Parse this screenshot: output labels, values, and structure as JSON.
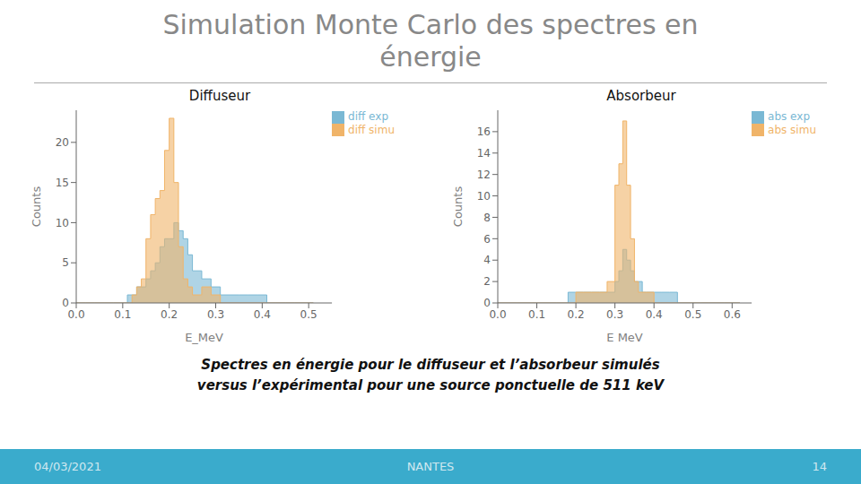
{
  "title": "Simulation Monte Carlo des spectres en\nénergie",
  "annotations": [
    "Spectres en énergie pour le diffuseur et l’absorbeur simulés",
    "versus l’expérimental pour une source ponctuelle de 511 keV",
    "04/03/2021",
    "NANTES",
    "14"
  ],
  "chart_data": [
    {
      "type": "histogram",
      "title": "Diffuseur",
      "xlabel": "E_MeV",
      "ylabel": "Counts",
      "xlim": [
        0.0,
        0.55
      ],
      "ylim": [
        0,
        24
      ],
      "xticks": [
        {
          "value": 0.0,
          "label": "0.0"
        },
        0.1,
        0.2,
        0.3,
        0.4,
        0.5
      ],
      "yticks": [
        0,
        5,
        10,
        15,
        20
      ],
      "grid": false,
      "legend": "upper right",
      "series": [
        {
          "name": "diff exp",
          "color": "#7ab8d4",
          "bins": [
            0.0,
            0.02,
            0.04,
            0.06,
            0.08,
            0.1,
            0.11,
            0.12,
            0.13,
            0.14,
            0.15,
            0.16,
            0.17,
            0.18,
            0.19,
            0.2,
            0.21,
            0.22,
            0.23,
            0.24,
            0.25,
            0.27,
            0.29,
            0.31,
            0.33,
            0.35,
            0.37,
            0.39,
            0.41,
            0.43,
            0.45,
            0.47,
            0.49,
            0.51
          ],
          "values": [
            0,
            0,
            0,
            0,
            0,
            0,
            1,
            1,
            2,
            2,
            3,
            4,
            5,
            7,
            8,
            8,
            10,
            9,
            8,
            6,
            4,
            3,
            2,
            1,
            1,
            1,
            1,
            1,
            0,
            0,
            0,
            0,
            0
          ]
        },
        {
          "name": "diff simu",
          "color": "#f0b469",
          "bins": [
            0.0,
            0.02,
            0.04,
            0.06,
            0.08,
            0.1,
            0.11,
            0.12,
            0.13,
            0.14,
            0.15,
            0.16,
            0.17,
            0.18,
            0.19,
            0.2,
            0.21,
            0.22,
            0.23,
            0.24,
            0.25,
            0.27,
            0.29,
            0.31,
            0.33,
            0.35,
            0.37,
            0.39,
            0.41,
            0.43,
            0.45,
            0.47,
            0.49,
            0.51
          ],
          "values": [
            0,
            0,
            0,
            0,
            0,
            0,
            0,
            1,
            2,
            3,
            8,
            11,
            13,
            14,
            19,
            23,
            15,
            7,
            3,
            2,
            1,
            2,
            1,
            0,
            0,
            0,
            0,
            0,
            0,
            0,
            0,
            0,
            0
          ]
        }
      ]
    },
    {
      "type": "histogram",
      "title": "Absorbeur",
      "xlabel": "E MeV",
      "ylabel": "Counts",
      "xlim": [
        0.0,
        0.65
      ],
      "ylim": [
        0,
        18
      ],
      "xticks": [
        {
          "value": 0.0,
          "label": "0.0"
        },
        0.1,
        0.2,
        0.3,
        0.4,
        0.5,
        0.6
      ],
      "yticks": [
        0,
        2,
        4,
        6,
        8,
        10,
        12,
        14,
        16
      ],
      "grid": false,
      "legend": "upper right",
      "series": [
        {
          "name": "abs exp",
          "color": "#7ab8d4",
          "bins": [
            0.0,
            0.05,
            0.1,
            0.15,
            0.18,
            0.2,
            0.22,
            0.24,
            0.26,
            0.28,
            0.3,
            0.31,
            0.32,
            0.33,
            0.34,
            0.35,
            0.36,
            0.37,
            0.38,
            0.4,
            0.42,
            0.44,
            0.46,
            0.48,
            0.5,
            0.52,
            0.54,
            0.56,
            0.58,
            0.6,
            0.62
          ],
          "values": [
            0,
            0,
            0,
            0,
            1,
            1,
            1,
            1,
            1,
            1,
            2,
            3,
            5,
            4,
            3,
            2,
            2,
            1,
            1,
            1,
            1,
            1,
            0,
            0,
            0,
            0,
            0,
            0,
            0,
            0
          ]
        },
        {
          "name": "abs simu",
          "color": "#f0b469",
          "bins": [
            0.0,
            0.05,
            0.1,
            0.15,
            0.18,
            0.2,
            0.22,
            0.24,
            0.26,
            0.28,
            0.3,
            0.31,
            0.32,
            0.33,
            0.34,
            0.35,
            0.36,
            0.37,
            0.38,
            0.4,
            0.42,
            0.44,
            0.46,
            0.48,
            0.5,
            0.52,
            0.54,
            0.56,
            0.58,
            0.6,
            0.62
          ],
          "values": [
            0,
            0,
            0,
            0,
            0,
            1,
            1,
            1,
            1,
            2,
            11,
            13,
            17,
            11,
            6,
            2,
            1,
            1,
            1,
            0,
            0,
            0,
            0,
            0,
            0,
            0,
            0,
            0,
            0,
            0
          ]
        }
      ]
    }
  ]
}
